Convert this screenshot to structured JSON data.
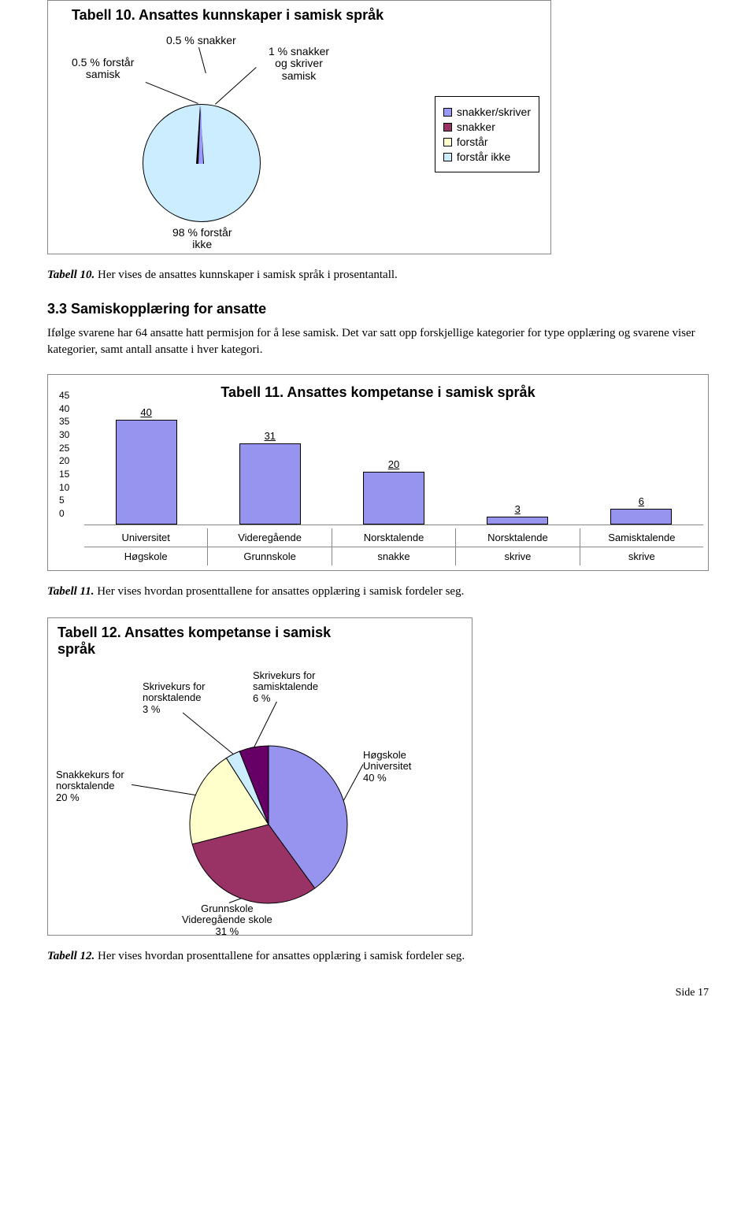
{
  "chart1": {
    "title": "Tabell 10. Ansattes kunnskaper i samisk språk",
    "type": "pie",
    "slices": [
      {
        "label": "snakker/skriver",
        "value": 1,
        "color": "#9999ff"
      },
      {
        "label": "snakker",
        "value": 0.5,
        "color": "#993366"
      },
      {
        "label": "forstår",
        "value": 0.5,
        "color": "#ffffcc"
      },
      {
        "label": "forstår ikke",
        "value": 98,
        "color": "#ccecff"
      }
    ],
    "callouts": {
      "a": "0.5 % snakker",
      "b": "0.5 % forstår\nsamisk",
      "c": "1 % snakker\nog skriver\nsamisk",
      "d": "98 % forstår\nikke"
    },
    "legend": [
      "snakker/skriver",
      "snakker",
      "forstår",
      "forstår ikke"
    ]
  },
  "caption1": {
    "bold": "Tabell 10.",
    "text": " Her vises de ansattes kunnskaper i samisk språk i prosentantall."
  },
  "section": {
    "heading": "3.3 Samiskopplæring for ansatte",
    "body": "Ifølge svarene har 64 ansatte hatt permisjon for å lese samisk. Det var satt opp forskjellige kategorier for type opplæring og svarene viser kategorier, samt antall ansatte i hver kategori."
  },
  "chart2": {
    "title": "Tabell 11. Ansattes kompetanse i samisk språk",
    "type": "bar",
    "ymax": 45,
    "ystep": 5,
    "bar_color": "#9694ee",
    "bars": [
      {
        "value": 40,
        "top": "Universitet",
        "bottom": "Høgskole"
      },
      {
        "value": 31,
        "top": "Videregående",
        "bottom": "Grunnskole"
      },
      {
        "value": 20,
        "top": "Norsktalende",
        "bottom": "snakke"
      },
      {
        "value": 3,
        "top": "Norsktalende",
        "bottom": "skrive"
      },
      {
        "value": 6,
        "top": "Samisktalende",
        "bottom": "skrive"
      }
    ]
  },
  "caption2": {
    "bold": "Tabell 11.",
    "text": " Her vises hvordan prosenttallene for ansattes opplæring i samisk fordeler seg."
  },
  "chart3": {
    "title": "Tabell 12. Ansattes kompetanse i samisk språk",
    "type": "pie",
    "slices": [
      {
        "label": "Høgskole Universitet",
        "pct": "40 %",
        "value": 40,
        "color": "#9694ee"
      },
      {
        "label": "Grunnskole Videregående skole",
        "pct": "31 %",
        "value": 31,
        "color": "#993366"
      },
      {
        "label": "Snakkekurs for norsktalende",
        "pct": "20 %",
        "value": 20,
        "color": "#ffffcc"
      },
      {
        "label": "Skrivekurs for norsktalende",
        "pct": "3 %",
        "value": 3,
        "color": "#ccecff"
      },
      {
        "label": "Skrivekurs for samisktalende",
        "pct": "6 %",
        "value": 6,
        "color": "#660066"
      }
    ]
  },
  "caption3": {
    "bold": "Tabell 12.",
    "text": " Her vises hvordan prosenttallene for ansattes opplæring i samisk fordeler seg."
  },
  "footer": "Side 17"
}
